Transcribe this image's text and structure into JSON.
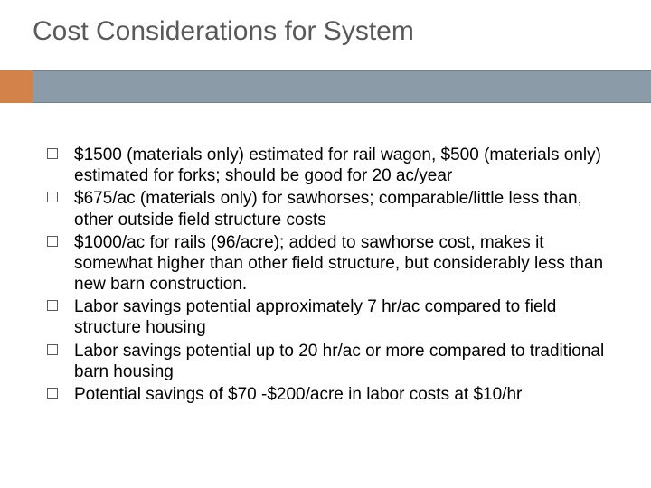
{
  "slide": {
    "title": "Cost Considerations for System",
    "title_color": "#595959",
    "title_fontsize": 30,
    "accent_color": "#d38349",
    "bar_color": "#8b9ba8",
    "bar_border_color": "#6e7f8f",
    "background_color": "#ffffff",
    "bullet_box_border": "#595959",
    "body_fontsize": 19,
    "body_color": "#000000",
    "bullets": [
      "$1500 (materials only) estimated for rail wagon, $500 (materials only) estimated for forks; should be good for 20 ac/year",
      "$675/ac (materials only) for sawhorses; comparable/little less than, other outside field structure costs",
      "$1000/ac for rails (96/acre); added to sawhorse cost, makes it somewhat higher than other field structure, but considerably less than new barn construction.",
      "Labor savings potential approximately 7 hr/ac compared to field structure housing",
      "Labor savings potential up to 20 hr/ac or more compared to traditional barn housing",
      "Potential savings of $70 -$200/acre in labor costs at $10/hr"
    ]
  }
}
